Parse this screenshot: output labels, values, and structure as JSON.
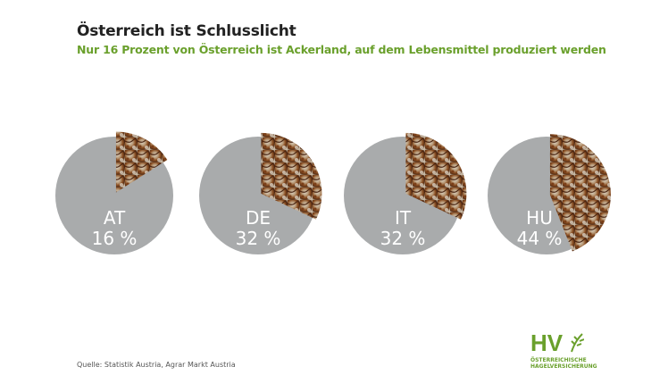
{
  "title": "Österreich ist Schlusslicht",
  "subtitle": "Nur 16 Prozent von Österreich ist Ackerland, auf dem Lebensmittel produziert werden",
  "source": "Quelle: Statistik Austria, Agrar Markt Austria",
  "logo": {
    "mark": "HV",
    "line1": "ÖSTERREICHISCHE",
    "line2": "HAGELVERSICHERUNG"
  },
  "colors": {
    "pie_base": "#a9abac",
    "label": "#ffffff",
    "accent": "#6aa02c"
  },
  "chart_data": {
    "type": "pie",
    "charts": [
      {
        "label": "AT",
        "value": 16,
        "value_label": "16 %"
      },
      {
        "label": "DE",
        "value": 32,
        "value_label": "32 %"
      },
      {
        "label": "IT",
        "value": 32,
        "value_label": "32 %"
      },
      {
        "label": "HU",
        "value": 44,
        "value_label": "44 %"
      }
    ],
    "unit": "%",
    "slice_fill": "bread-texture"
  }
}
